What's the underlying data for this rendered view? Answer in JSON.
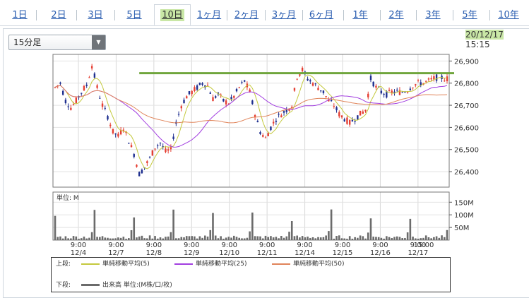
{
  "tabs": [
    {
      "label": "1日"
    },
    {
      "label": "2日"
    },
    {
      "label": "3日"
    },
    {
      "label": "5日"
    },
    {
      "label": "10日",
      "selected": true
    },
    {
      "label": "1ヶ月"
    },
    {
      "label": "2ヶ月"
    },
    {
      "label": "3ヶ月"
    },
    {
      "label": "6ヶ月"
    },
    {
      "label": "1年"
    },
    {
      "label": "2年"
    },
    {
      "label": "3年"
    },
    {
      "label": "5年"
    },
    {
      "label": "10年"
    }
  ],
  "interval_select": {
    "value": "15分足"
  },
  "timestamp": {
    "date": "20/12/17",
    "time": "15:15"
  },
  "colors": {
    "up": "#e53f33",
    "down": "#1e2f8f",
    "ma5": "#c4c93d",
    "ma25": "#a23ee0",
    "ma50": "#e0845a",
    "trend": "#6fa53c",
    "volume": "#6b6b6b",
    "tab_accent": "#c9e7a6"
  },
  "chart_data": {
    "type": "candlestick",
    "price_ticks": [
      "26,900",
      "26,800",
      "26,700",
      "26,600",
      "26,500",
      "26,400"
    ],
    "price_tick_values": [
      26900,
      26800,
      26700,
      26600,
      26500,
      26400
    ],
    "ylim": [
      26330,
      26930
    ],
    "volume_unit_label": "単位: M",
    "volume_ticks": [
      "150M",
      "100M",
      "50M"
    ],
    "volume_tick_values": [
      150,
      100,
      50
    ],
    "volume_ylim": [
      0,
      190
    ],
    "x_labels": [
      {
        "time": "9:00",
        "date": "12/4"
      },
      {
        "time": "9:00",
        "date": "12/7"
      },
      {
        "time": "9:00",
        "date": "12/8"
      },
      {
        "time": "9:00",
        "date": "12/9"
      },
      {
        "time": "9:00",
        "date": "12/10"
      },
      {
        "time": "9:00",
        "date": "12/11"
      },
      {
        "time": "9:00",
        "date": "12/14"
      },
      {
        "time": "9:00",
        "date": "12/15"
      },
      {
        "time": "9:00",
        "date": "12/16"
      },
      {
        "time": "9:00",
        "date": "12/17"
      },
      {
        "time": "15:00",
        "date": ""
      }
    ],
    "trendline": {
      "from": 26845,
      "to": 26845
    },
    "price_path": [
      [
        0,
        26780
      ],
      [
        2,
        26800
      ],
      [
        4,
        26720
      ],
      [
        6,
        26690
      ],
      [
        8,
        26720
      ],
      [
        10,
        26760
      ],
      [
        12,
        26790
      ],
      [
        14,
        26880
      ],
      [
        16,
        26780
      ],
      [
        18,
        26700
      ],
      [
        20,
        26650
      ],
      [
        22,
        26580
      ],
      [
        24,
        26560
      ],
      [
        26,
        26600
      ],
      [
        28,
        26540
      ],
      [
        30,
        26480
      ],
      [
        32,
        26390
      ],
      [
        34,
        26420
      ],
      [
        36,
        26460
      ],
      [
        38,
        26510
      ],
      [
        40,
        26530
      ],
      [
        42,
        26490
      ],
      [
        44,
        26500
      ],
      [
        46,
        26620
      ],
      [
        48,
        26700
      ],
      [
        50,
        26740
      ],
      [
        52,
        26760
      ],
      [
        54,
        26780
      ],
      [
        56,
        26800
      ],
      [
        58,
        26790
      ],
      [
        60,
        26730
      ],
      [
        62,
        26750
      ],
      [
        64,
        26720
      ],
      [
        66,
        26710
      ],
      [
        68,
        26740
      ],
      [
        70,
        26780
      ],
      [
        72,
        26810
      ],
      [
        74,
        26760
      ],
      [
        76,
        26660
      ],
      [
        78,
        26580
      ],
      [
        80,
        26550
      ],
      [
        82,
        26600
      ],
      [
        84,
        26640
      ],
      [
        86,
        26660
      ],
      [
        88,
        26680
      ],
      [
        90,
        26700
      ],
      [
        92,
        26830
      ],
      [
        94,
        26860
      ],
      [
        96,
        26820
      ],
      [
        98,
        26800
      ],
      [
        100,
        26780
      ],
      [
        102,
        26760
      ],
      [
        104,
        26720
      ],
      [
        106,
        26700
      ],
      [
        108,
        26660
      ],
      [
        110,
        26640
      ],
      [
        112,
        26620
      ],
      [
        114,
        26640
      ],
      [
        116,
        26660
      ],
      [
        118,
        26680
      ],
      [
        120,
        26820
      ],
      [
        122,
        26780
      ],
      [
        124,
        26760
      ],
      [
        126,
        26750
      ],
      [
        128,
        26760
      ],
      [
        130,
        26760
      ],
      [
        132,
        26760
      ],
      [
        134,
        26770
      ],
      [
        136,
        26790
      ],
      [
        138,
        26800
      ],
      [
        140,
        26800
      ],
      [
        142,
        26810
      ],
      [
        144,
        26820
      ],
      [
        146,
        26830
      ],
      [
        148,
        26820
      ]
    ],
    "series": [
      {
        "name": "単純移動平均(5)",
        "color_key": "ma5"
      },
      {
        "name": "単純移動平均(25)",
        "color_key": "ma25"
      },
      {
        "name": "単純移動平均(50)",
        "color_key": "ma50"
      }
    ]
  },
  "legend": {
    "upper_label": "上段:",
    "lower_label": "下段:",
    "ma5": "単純移動平均(5)",
    "ma25": "単純移動平均(25)",
    "ma50": "単純移動平均(50)",
    "volume": "出来高 単位:(M株/口/枚)"
  }
}
